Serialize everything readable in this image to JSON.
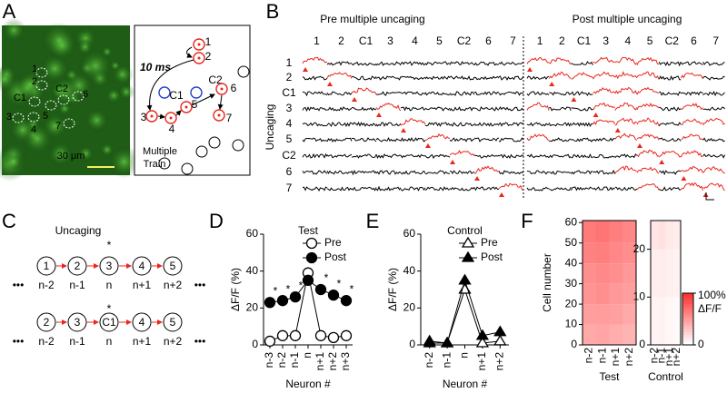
{
  "panel_labels": [
    "A",
    "B",
    "C",
    "D",
    "E",
    "F"
  ],
  "panel_a": {
    "cell_labels": [
      "1",
      "2",
      "C1",
      "C2",
      "6",
      "3",
      "4",
      "5",
      "7"
    ],
    "scale_bar": "30 μm",
    "diagram": {
      "time": "10 ms",
      "nodes": [
        "1",
        "2",
        "C1",
        "C2",
        "6",
        "3",
        "4",
        "5",
        "7"
      ],
      "caption": [
        "Multiple",
        "Train"
      ]
    }
  },
  "panel_b": {
    "pre_title": "Pre multiple uncaging",
    "post_title": "Post multiple uncaging",
    "y_label": "Uncaging",
    "columns": [
      "1",
      "2",
      "C1",
      "3",
      "4",
      "5",
      "C2",
      "6",
      "7"
    ],
    "rows": [
      "1",
      "2",
      "C1",
      "3",
      "4",
      "5",
      "C2",
      "6",
      "7"
    ],
    "pre_red_traces": [
      [
        0
      ],
      [
        1
      ],
      [
        2
      ],
      [
        3
      ],
      [
        4
      ],
      [
        5
      ],
      [
        6
      ],
      [
        7
      ],
      [
        8
      ]
    ],
    "post_red_traces": [
      [
        0,
        1,
        3,
        4,
        5
      ],
      [
        1,
        2,
        3,
        4,
        5,
        7
      ],
      [
        3,
        4,
        5
      ],
      [
        0,
        3,
        4,
        5,
        7
      ],
      [
        3,
        4,
        5,
        7,
        8
      ],
      [
        0,
        4,
        5,
        7
      ],
      [
        5,
        6,
        7
      ],
      [
        4,
        5,
        7,
        8
      ],
      [
        5,
        7,
        8
      ]
    ]
  },
  "panel_c": {
    "title": "Uncaging",
    "star": "*",
    "row1": {
      "nodes": [
        "1",
        "2",
        "3",
        "4",
        "5"
      ],
      "labels": [
        "n-2",
        "n-1",
        "n",
        "n+1",
        "n+2"
      ]
    },
    "row2": {
      "nodes": [
        "2",
        "3",
        "C1",
        "4",
        "5"
      ],
      "labels": [
        "n-2",
        "n-1",
        "n",
        "n+1",
        "n+2"
      ]
    },
    "ellipsis": "•••"
  },
  "chart_data": [
    {
      "type": "line",
      "title": "Test",
      "xlabel": "Neuron #",
      "ylabel": "ΔF/F (%)",
      "categories": [
        "n-3",
        "n-2",
        "n-1",
        "n",
        "n+1",
        "n+2",
        "n+3"
      ],
      "series": [
        {
          "name": "Pre",
          "color": "#000000",
          "marker": "circle",
          "filled": false,
          "values": [
            2,
            5,
            5,
            39,
            5,
            4,
            5
          ]
        },
        {
          "name": "Post",
          "color": "#000000",
          "marker": "circle",
          "filled": true,
          "values": [
            23,
            24,
            26,
            35,
            30,
            27,
            24
          ]
        }
      ],
      "significance": [
        "*",
        "*",
        "*",
        null,
        "*",
        "*",
        "*"
      ],
      "ylim": [
        0,
        60
      ],
      "yticks": [
        0,
        20,
        40,
        60
      ],
      "legend": "top-right"
    },
    {
      "type": "line",
      "title": "Control",
      "xlabel": "Neuron #",
      "ylabel": "ΔF/F (%)",
      "categories": [
        "n-2",
        "n-1",
        "n",
        "n+1",
        "n+2"
      ],
      "series": [
        {
          "name": "Pre",
          "color": "#000000",
          "marker": "triangle",
          "filled": false,
          "values": [
            2,
            1,
            30,
            1,
            2
          ]
        },
        {
          "name": "Post",
          "color": "#000000",
          "marker": "triangle",
          "filled": true,
          "values": [
            1,
            1,
            35,
            5,
            7
          ]
        }
      ],
      "ylim": [
        0,
        60
      ],
      "yticks": [
        0,
        20,
        40,
        60
      ],
      "legend": "top-right"
    },
    {
      "type": "heatmap",
      "xlabel": "Test",
      "ylabel": "Cell number",
      "categories": [
        "n-2",
        "n-1",
        "n+1",
        "n+2"
      ],
      "y_bins": [
        0,
        10,
        20,
        30,
        40,
        50,
        61
      ],
      "values": [
        [
          40,
          45,
          50,
          52,
          58,
          62
        ],
        [
          42,
          46,
          52,
          55,
          60,
          64
        ],
        [
          38,
          44,
          48,
          52,
          56,
          60
        ],
        [
          35,
          40,
          45,
          48,
          52,
          56
        ]
      ],
      "ylim": [
        0,
        61
      ],
      "yticks": [
        0,
        10,
        20,
        30,
        40,
        50,
        60
      ]
    },
    {
      "type": "heatmap",
      "xlabel": "Control",
      "categories": [
        "n-2",
        "n-1",
        "n+1",
        "n+2"
      ],
      "y_bins": [
        0,
        10,
        20,
        26
      ],
      "values": [
        [
          5,
          8,
          12
        ],
        [
          6,
          9,
          14
        ],
        [
          4,
          7,
          10
        ],
        [
          3,
          6,
          9
        ]
      ],
      "ylim": [
        0,
        26
      ],
      "yticks": [
        0,
        10,
        20
      ],
      "colorbar": {
        "lim": [
          0,
          100
        ],
        "ticks": [
          {
            "value": 100,
            "label": "100%"
          },
          0
        ],
        "label": "ΔF/F"
      }
    }
  ]
}
